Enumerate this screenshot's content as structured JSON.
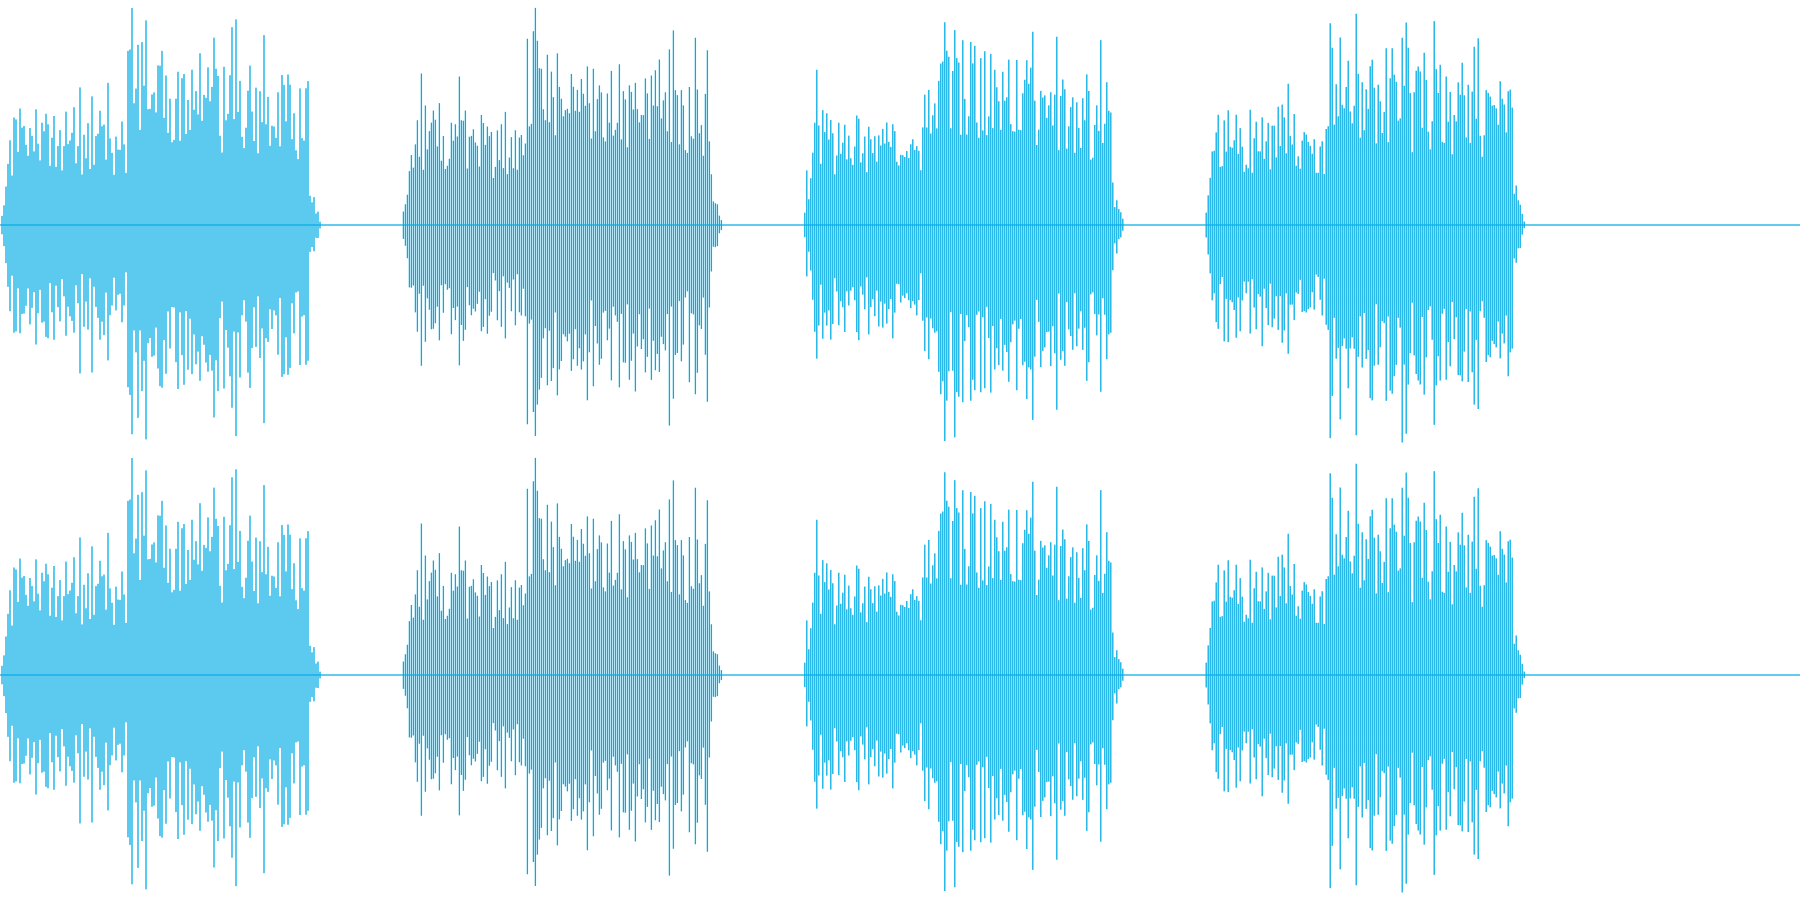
{
  "waveform": {
    "color": "#05ace4",
    "background": "#ffffff",
    "channels": [
      {
        "name": "channel-1"
      },
      {
        "name": "channel-2"
      }
    ],
    "duration_units": 1.0,
    "bursts": [
      {
        "start": 0.0,
        "split": 0.07,
        "end": 0.172,
        "amp_a": 0.58,
        "amp_b": 0.95,
        "peak": 1.0
      },
      {
        "start": 0.223,
        "split": 0.293,
        "end": 0.395,
        "amp_a": 0.58,
        "amp_b": 0.95,
        "peak": 1.0
      },
      {
        "start": 0.446,
        "split": 0.516,
        "end": 0.618,
        "amp_a": 0.58,
        "amp_b": 0.95,
        "peak": 1.0
      },
      {
        "start": 0.669,
        "split": 0.739,
        "end": 0.841,
        "amp_a": 0.58,
        "amp_b": 0.95,
        "peak": 1.0
      }
    ]
  }
}
